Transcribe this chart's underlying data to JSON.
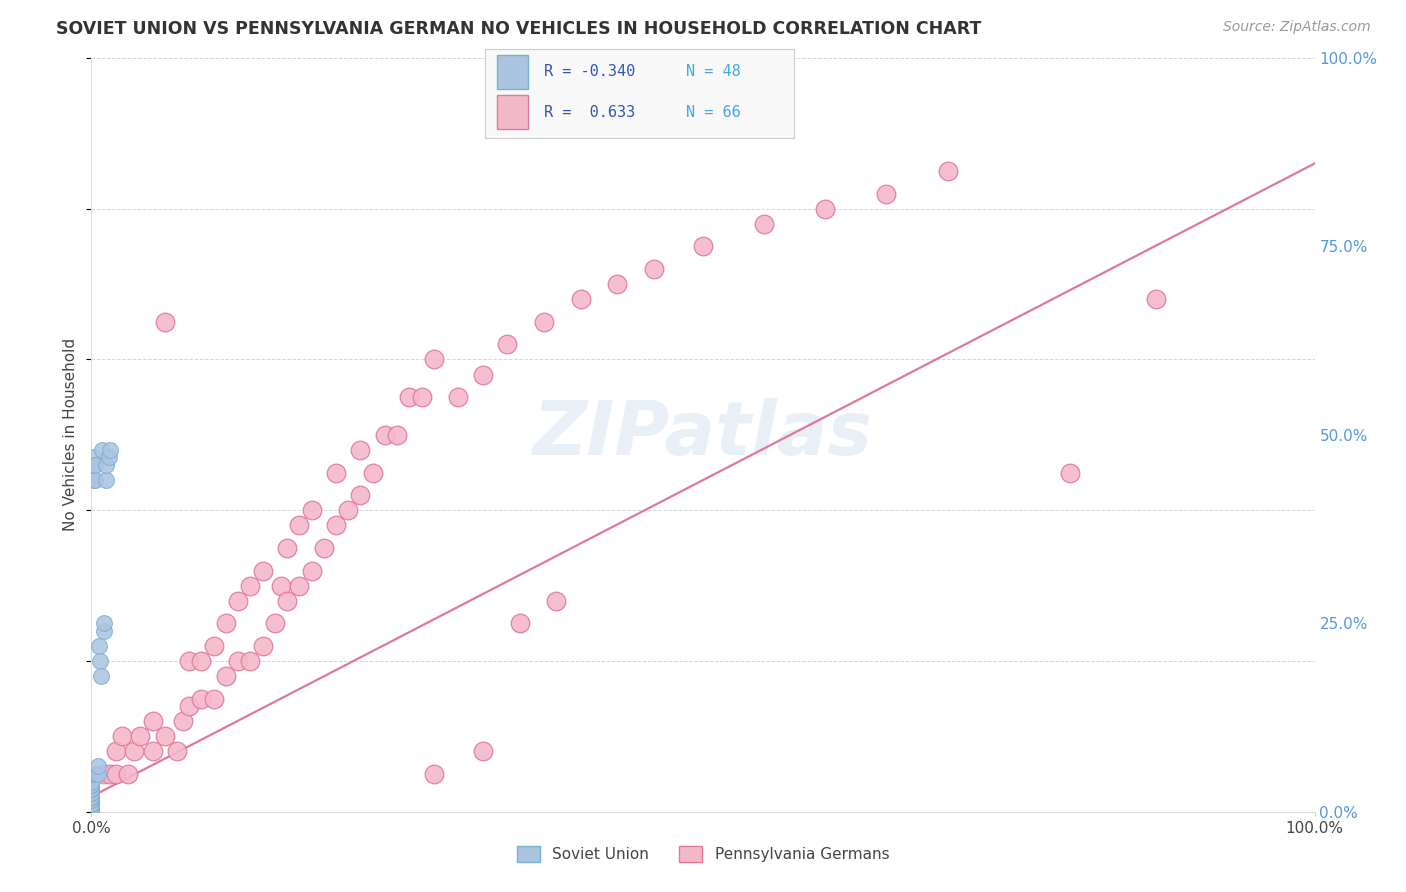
{
  "title": "SOVIET UNION VS PENNSYLVANIA GERMAN NO VEHICLES IN HOUSEHOLD CORRELATION CHART",
  "source": "Source: ZipAtlas.com",
  "ylabel": "No Vehicles in Household",
  "bg_color": "#ffffff",
  "grid_color": "#cccccc",
  "soviet_color": "#aac4e0",
  "soviet_edge": "#7bafd4",
  "penn_color": "#f4b8cb",
  "penn_edge": "#e07898",
  "trendline_color": "#e07898",
  "soviet_x": [
    0.0,
    0.0,
    0.0,
    0.0,
    0.0,
    0.0,
    0.0,
    0.0,
    0.0,
    0.0,
    0.0,
    0.0,
    0.0,
    0.0,
    0.0,
    0.0,
    0.0,
    0.0,
    0.0,
    0.0,
    0.0,
    0.0,
    0.0,
    0.0,
    0.0,
    0.0,
    0.0,
    0.0,
    0.0,
    0.0,
    0.002,
    0.002,
    0.002,
    0.003,
    0.003,
    0.004,
    0.005,
    0.005,
    0.006,
    0.007,
    0.008,
    0.009,
    0.01,
    0.01,
    0.012,
    0.012,
    0.014,
    0.015
  ],
  "soviet_y": [
    0.0,
    0.0,
    0.0,
    0.0,
    0.0,
    0.0,
    0.0,
    0.0,
    0.0,
    0.0,
    0.005,
    0.005,
    0.005,
    0.01,
    0.01,
    0.01,
    0.01,
    0.015,
    0.015,
    0.02,
    0.02,
    0.02,
    0.025,
    0.025,
    0.03,
    0.03,
    0.035,
    0.035,
    0.04,
    0.05,
    0.44,
    0.46,
    0.47,
    0.44,
    0.46,
    0.05,
    0.05,
    0.06,
    0.22,
    0.2,
    0.18,
    0.48,
    0.24,
    0.25,
    0.44,
    0.46,
    0.47,
    0.48
  ],
  "penn_x": [
    0.01,
    0.015,
    0.02,
    0.02,
    0.025,
    0.03,
    0.035,
    0.04,
    0.05,
    0.05,
    0.06,
    0.06,
    0.07,
    0.075,
    0.08,
    0.08,
    0.09,
    0.09,
    0.1,
    0.1,
    0.11,
    0.11,
    0.12,
    0.12,
    0.13,
    0.13,
    0.14,
    0.14,
    0.15,
    0.155,
    0.16,
    0.16,
    0.17,
    0.17,
    0.18,
    0.18,
    0.19,
    0.2,
    0.2,
    0.21,
    0.22,
    0.22,
    0.23,
    0.24,
    0.25,
    0.26,
    0.27,
    0.28,
    0.3,
    0.32,
    0.34,
    0.37,
    0.4,
    0.43,
    0.46,
    0.5,
    0.55,
    0.6,
    0.65,
    0.7,
    0.8,
    0.87,
    0.35,
    0.38,
    0.32,
    0.28
  ],
  "penn_y": [
    0.05,
    0.05,
    0.05,
    0.08,
    0.1,
    0.05,
    0.08,
    0.1,
    0.08,
    0.12,
    0.1,
    0.65,
    0.08,
    0.12,
    0.14,
    0.2,
    0.15,
    0.2,
    0.15,
    0.22,
    0.18,
    0.25,
    0.2,
    0.28,
    0.2,
    0.3,
    0.22,
    0.32,
    0.25,
    0.3,
    0.28,
    0.35,
    0.3,
    0.38,
    0.32,
    0.4,
    0.35,
    0.38,
    0.45,
    0.4,
    0.42,
    0.48,
    0.45,
    0.5,
    0.5,
    0.55,
    0.55,
    0.6,
    0.55,
    0.58,
    0.62,
    0.65,
    0.68,
    0.7,
    0.72,
    0.75,
    0.78,
    0.8,
    0.82,
    0.85,
    0.45,
    0.68,
    0.25,
    0.28,
    0.08,
    0.05
  ],
  "trendline_x": [
    0.0,
    1.0
  ],
  "trendline_y": [
    0.02,
    0.86
  ],
  "xlim": [
    0.0,
    1.0
  ],
  "ylim": [
    0.0,
    1.0
  ],
  "xticks": [
    0.0,
    1.0
  ],
  "xticklabels": [
    "0.0%",
    "100.0%"
  ],
  "yticks": [
    0.0,
    0.25,
    0.5,
    0.75,
    1.0
  ],
  "yticklabels": [
    "0.0%",
    "25.0%",
    "50.0%",
    "75.0%",
    "100.0%"
  ]
}
